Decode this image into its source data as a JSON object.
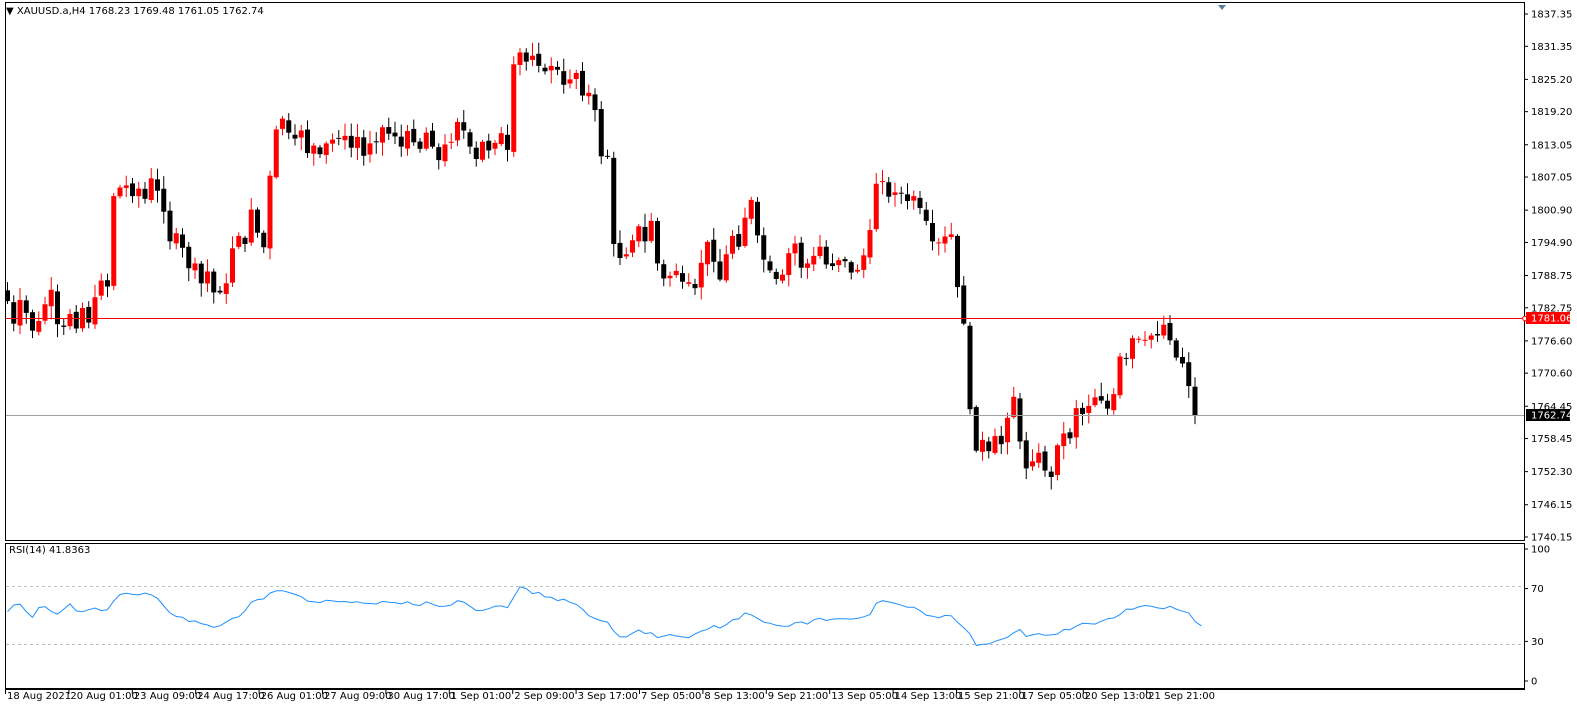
{
  "header": {
    "symbol": "XAUUSD.a,H4",
    "ohlc": "1768.23 1769.48 1761.05 1762.74",
    "triangle": "▼"
  },
  "colors": {
    "bull": "#ff0000",
    "bear": "#000000",
    "hline": "#ff0000",
    "bid_line": "#a0a0a0",
    "rsi_line": "#1e90ff",
    "rsi_levels": "#c0c0c0",
    "marker": "#5a7a9a"
  },
  "chart_data": [
    {
      "type": "candlestick",
      "title": "XAUUSD.a,H4",
      "ylim": [
        1740.15,
        1840.0
      ],
      "y_ticks": [
        "1837.35",
        "1831.35",
        "1825.20",
        "1819.20",
        "1813.05",
        "1807.05",
        "1800.90",
        "1794.90",
        "1788.75",
        "1782.75",
        "1776.60",
        "1770.60",
        "1764.45",
        "1758.45",
        "1752.30",
        "1746.15",
        "1740.15"
      ],
      "x_labels": [
        "18 Aug 2021",
        "20 Aug 01:00",
        "23 Aug 09:00",
        "24 Aug 17:00",
        "26 Aug 01:00",
        "27 Aug 09:00",
        "30 Aug 17:00",
        "1 Sep 01:00",
        "2 Sep 09:00",
        "3 Sep 17:00",
        "7 Sep 05:00",
        "8 Sep 13:00",
        "9 Sep 21:00",
        "13 Sep 05:00",
        "14 Sep 13:00",
        "15 Sep 21:00",
        "17 Sep 05:00",
        "20 Sep 13:00",
        "21 Sep 21:00"
      ],
      "horizontal_line": {
        "value": 1781.06,
        "label": "1781.06"
      },
      "bid_line": {
        "value": 1762.74,
        "label": "1762.74"
      },
      "closes": [
        1784.0,
        1779.8,
        1784.2,
        1781.8,
        1778.5,
        1780.3,
        1783.4,
        1786.1,
        1779.7,
        1779.2,
        1781.6,
        1778.9,
        1782.7,
        1780.0,
        1784.7,
        1787.8,
        1786.7,
        1803.5,
        1805.1,
        1805.5,
        1803.5,
        1804.9,
        1803.0,
        1806.8,
        1804.5,
        1800.6,
        1795.1,
        1796.6,
        1793.9,
        1790.1,
        1791.0,
        1787.3,
        1789.5,
        1785.6,
        1785.6,
        1787.3,
        1793.8,
        1796.1,
        1794.6,
        1801.0,
        1796.7,
        1794.0,
        1807.3,
        1815.9,
        1817.9,
        1815.3,
        1814.2,
        1815.7,
        1811.5,
        1812.9,
        1811.3,
        1813.3,
        1814.0,
        1814.2,
        1814.7,
        1812.5,
        1814.5,
        1811.0,
        1813.3,
        1813.5,
        1816.3,
        1815.1,
        1814.6,
        1812.7,
        1815.6,
        1813.5,
        1812.3,
        1815.3,
        1812.7,
        1810.2,
        1813.1,
        1813.6,
        1817.3,
        1815.7,
        1812.7,
        1810.4,
        1813.6,
        1812.0,
        1813.4,
        1815.2,
        1812.1,
        1828.0,
        1830.2,
        1828.5,
        1829.6,
        1827.7,
        1826.7,
        1827.7,
        1827.0,
        1824.2,
        1825.2,
        1826.4,
        1822.2,
        1822.7,
        1819.5,
        1810.9,
        1810.9,
        1794.6,
        1792.0,
        1792.7,
        1795.3,
        1797.9,
        1795.1,
        1798.9,
        1791.0,
        1788.2,
        1788.7,
        1789.6,
        1787.6,
        1787.5,
        1786.4,
        1791.1,
        1795.0,
        1791.3,
        1788.0,
        1792.7,
        1796.1,
        1794.1,
        1799.5,
        1802.8,
        1796.2,
        1791.7,
        1789.7,
        1788.1,
        1788.9,
        1792.9,
        1794.7,
        1790.2,
        1791.0,
        1792.4,
        1794.1,
        1790.8,
        1790.5,
        1791.6,
        1791.4,
        1789.3,
        1789.8,
        1792.5,
        1797.2,
        1805.8,
        1806.3,
        1803.4,
        1804.2,
        1804.1,
        1802.6,
        1803.5,
        1801.3,
        1798.9,
        1795.1,
        1794.9,
        1796.0,
        1796.4,
        1786.6,
        1779.8,
        1763.9,
        1756.2,
        1758.2,
        1756.1,
        1758.9,
        1757.4,
        1762.3,
        1766.2,
        1757.9,
        1752.9,
        1754.2,
        1755.8,
        1752.5,
        1751.3,
        1757.2,
        1759.4,
        1758.5,
        1764.1,
        1763.0,
        1764.5,
        1766.1,
        1765.5,
        1764.0,
        1766.7,
        1773.7,
        1773.4,
        1777.1,
        1777.0,
        1776.8,
        1777.6,
        1777.6,
        1779.6,
        1776.7,
        1773.5,
        1772.4,
        1768.2,
        1762.7
      ]
    },
    {
      "type": "line",
      "title": "RSI(14) 41.8363",
      "ylim": [
        0,
        100
      ],
      "y_ticks": [
        "100",
        "70",
        "30",
        "0"
      ],
      "levels": [
        70,
        30
      ],
      "values": [
        52.5,
        57.6,
        58.2,
        52.6,
        48.2,
        55.6,
        56.4,
        52.7,
        50.6,
        54.5,
        58.3,
        53.1,
        52.4,
        54.0,
        55.3,
        53.3,
        54.0,
        60.7,
        65.5,
        66.5,
        65.6,
        65.2,
        66.5,
        65.3,
        62.6,
        56.8,
        51.5,
        48.9,
        48.3,
        45.1,
        45.5,
        43.5,
        42.4,
        40.7,
        41.8,
        44.8,
        47.4,
        48.7,
        53.2,
        59.8,
        61.7,
        62.2,
        66.6,
        68.3,
        68.4,
        67.1,
        65.6,
        63.9,
        60.5,
        60.1,
        59.4,
        61.2,
        60.7,
        60.1,
        60.2,
        59.5,
        60.1,
        58.9,
        58.7,
        58.3,
        60.3,
        59.6,
        59.4,
        58.4,
        60.0,
        57.7,
        57.2,
        60.0,
        58.2,
        56.5,
        56.7,
        57.6,
        60.8,
        59.8,
        56.7,
        53.3,
        53.5,
        54.8,
        56.7,
        56.9,
        55.5,
        63.6,
        71.4,
        70.0,
        66.1,
        67.2,
        63.6,
        63.4,
        60.9,
        62.0,
        59.6,
        58.0,
        54.5,
        49.5,
        47.4,
        45.5,
        44.6,
        37.7,
        33.4,
        33.4,
        36.2,
        38.7,
        36.0,
        36.5,
        32.9,
        34.0,
        35.2,
        34.1,
        33.4,
        32.8,
        35.6,
        37.8,
        39.2,
        42.0,
        40.1,
        42.7,
        46.3,
        47.1,
        51.6,
        50.1,
        47.5,
        44.6,
        43.7,
        42.3,
        41.6,
        41.5,
        44.1,
        44.8,
        43.1,
        46.4,
        47.5,
        45.8,
        46.9,
        47.2,
        47.2,
        46.9,
        47.4,
        48.6,
        50.3,
        58.9,
        60.8,
        59.9,
        58.8,
        57.4,
        55.9,
        55.9,
        53.3,
        49.8,
        49.1,
        47.8,
        49.7,
        49.4,
        44.5,
        40.3,
        35.6,
        27.0,
        27.7,
        28.1,
        30.1,
        31.5,
        33.1,
        36.6,
        39.0,
        33.7,
        34.9,
        35.9,
        34.6,
        34.9,
        35.6,
        39.0,
        38.9,
        41.5,
        43.7,
        43.5,
        43.1,
        45.3,
        47.1,
        47.8,
        50.3,
        54.5,
        54.4,
        56.1,
        57.2,
        56.6,
        55.4,
        54.8,
        56.6,
        54.5,
        52.9,
        51.5,
        45.1,
        41.8
      ]
    }
  ]
}
